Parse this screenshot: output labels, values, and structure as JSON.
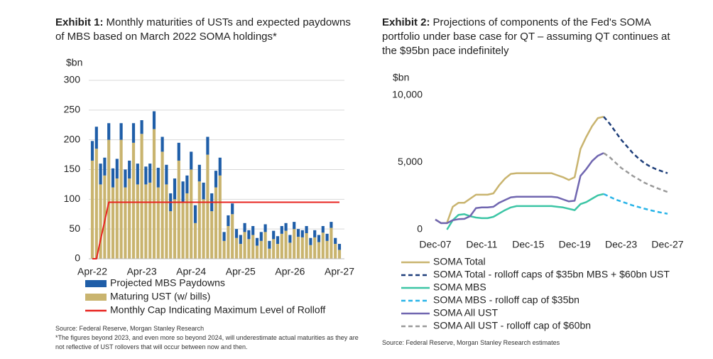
{
  "chart_data": [
    {
      "type": "bar",
      "stacked": true,
      "label": "Exhibit 1:",
      "title": "Monthly maturities of USTs and expected paydowns of MBS based on March 2022 SOMA holdings*",
      "ylabel": "$bn",
      "source": "Source: Federal Reserve, Morgan Stanley Research",
      "note": "*The figures beyond 2023, and even more so beyond 2024, will underestimate actual maturities as they are not reflective of UST rollovers that will occur between now and then.",
      "grid": true,
      "ylim": [
        0,
        300
      ],
      "yticks": [
        0,
        50,
        100,
        150,
        200,
        250,
        300
      ],
      "categories": [
        "Apr-22",
        null,
        null,
        null,
        null,
        null,
        null,
        null,
        null,
        null,
        null,
        null,
        "Apr-23",
        null,
        null,
        null,
        null,
        null,
        null,
        null,
        null,
        null,
        null,
        null,
        "Apr-24",
        null,
        null,
        null,
        null,
        null,
        null,
        null,
        null,
        null,
        null,
        null,
        "Apr-25",
        null,
        null,
        null,
        null,
        null,
        null,
        null,
        null,
        null,
        null,
        null,
        "Apr-26",
        null,
        null,
        null,
        null,
        null,
        null,
        null,
        null,
        null,
        null,
        null,
        "Apr-27"
      ],
      "series": [
        {
          "name": "Projected MBS Paydowns",
          "type": "bar",
          "color": "#1f5ea8",
          "values": [
            33,
            37,
            35,
            30,
            28,
            32,
            33,
            28,
            30,
            30,
            33,
            35,
            23,
            30,
            32,
            30,
            33,
            25,
            33,
            30,
            35,
            30,
            35,
            30,
            30,
            30,
            28,
            28,
            30,
            30,
            28,
            30,
            15,
            18,
            18,
            15,
            15,
            15,
            15,
            15,
            13,
            15,
            13,
            13,
            14,
            13,
            13,
            13,
            13,
            12,
            13,
            12,
            12,
            12,
            12,
            12,
            11,
            12,
            10,
            10,
            10
          ]
        },
        {
          "name": "Maturing UST (w/ bills)",
          "type": "bar",
          "color": "#c9b46f",
          "values": [
            165,
            185,
            125,
            140,
            200,
            120,
            135,
            200,
            120,
            135,
            195,
            125,
            210,
            125,
            128,
            218,
            120,
            180,
            125,
            80,
            100,
            165,
            95,
            110,
            150,
            60,
            130,
            100,
            175,
            80,
            120,
            140,
            30,
            55,
            75,
            35,
            25,
            45,
            33,
            40,
            22,
            30,
            45,
            17,
            33,
            25,
            42,
            47,
            27,
            50,
            37,
            36,
            43,
            23,
            36,
            28,
            44,
            30,
            52,
            25,
            15
          ]
        },
        {
          "name": "Monthly Cap Indicating Maximum Level of Rolloff",
          "type": "line",
          "color": "#e8231f",
          "values": [
            0,
            0,
            32,
            63,
            95,
            95,
            95,
            95,
            95,
            95,
            95,
            95,
            95,
            95,
            95,
            95,
            95,
            95,
            95,
            95,
            95,
            95,
            95,
            95,
            95,
            95,
            95,
            95,
            95,
            95,
            95,
            95,
            95,
            95,
            95,
            95,
            95,
            95,
            95,
            95,
            95,
            95,
            95,
            95,
            95,
            95,
            95,
            95,
            95,
            95,
            95,
            95,
            95,
            95,
            95,
            95,
            95,
            95,
            95,
            95,
            95
          ]
        }
      ]
    },
    {
      "type": "line",
      "label": "Exhibit 2:",
      "title": "Projections of components of the Fed's SOMA portfolio under base case for QT – assuming QT continues at the $95bn pace indefinitely",
      "ylabel": "$bn",
      "source": "Source: Federal Reserve, Morgan Stanley Research estimates",
      "grid": false,
      "ylim": [
        0,
        10000
      ],
      "yticks": [
        0,
        {
          "value": 5000,
          "label": "5,000"
        },
        {
          "value": 10000,
          "label": "10,000"
        }
      ],
      "categories": [
        "Dec-07",
        null,
        null,
        null,
        null,
        null,
        null,
        null,
        "Dec-11",
        null,
        null,
        null,
        null,
        null,
        null,
        null,
        "Dec-15",
        null,
        null,
        null,
        null,
        null,
        null,
        null,
        "Dec-19",
        null,
        null,
        null,
        null,
        null,
        null,
        null,
        "Dec-23",
        null,
        null,
        null,
        null,
        null,
        null,
        null,
        "Dec-27"
      ],
      "series": [
        {
          "name": "SOMA Total",
          "color": "#c9b46f",
          "dashed": false,
          "values": [
            750,
            480,
            500,
            1700,
            2000,
            2000,
            2300,
            2600,
            2600,
            2600,
            2700,
            3300,
            3800,
            4150,
            4200,
            4200,
            4200,
            4200,
            4200,
            4200,
            4200,
            4050,
            3900,
            3700,
            3900,
            6000,
            6900,
            7700,
            8300,
            8400,
            null,
            null,
            null,
            null,
            null,
            null,
            null,
            null,
            null,
            null,
            null
          ]
        },
        {
          "name": "SOMA Total - rolloff caps of $35bn MBS + $60bn UST",
          "color": "#1f3f7a",
          "dashed": true,
          "values": [
            null,
            null,
            null,
            null,
            null,
            null,
            null,
            null,
            null,
            null,
            null,
            null,
            null,
            null,
            null,
            null,
            null,
            null,
            null,
            null,
            null,
            null,
            null,
            null,
            null,
            null,
            null,
            null,
            null,
            8400,
            7900,
            7300,
            6700,
            6200,
            5700,
            5300,
            4950,
            4700,
            4500,
            4350,
            4200
          ]
        },
        {
          "name": "SOMA MBS",
          "color": "#3cc5a5",
          "dashed": false,
          "values": [
            null,
            null,
            0,
            700,
            1100,
            1150,
            1000,
            900,
            850,
            850,
            950,
            1200,
            1450,
            1650,
            1750,
            1750,
            1750,
            1750,
            1750,
            1750,
            1750,
            1700,
            1650,
            1550,
            1450,
            1900,
            2050,
            2300,
            2550,
            2650,
            null,
            null,
            null,
            null,
            null,
            null,
            null,
            null,
            null,
            null,
            null
          ]
        },
        {
          "name": "SOMA MBS - rolloff cap of $35bn",
          "color": "#29b4e8",
          "dashed": true,
          "values": [
            null,
            null,
            null,
            null,
            null,
            null,
            null,
            null,
            null,
            null,
            null,
            null,
            null,
            null,
            null,
            null,
            null,
            null,
            null,
            null,
            null,
            null,
            null,
            null,
            null,
            null,
            null,
            null,
            null,
            2650,
            2450,
            2250,
            2100,
            1950,
            1800,
            1680,
            1560,
            1450,
            1350,
            1260,
            1180
          ]
        },
        {
          "name": "SOMA All UST",
          "color": "#7066b0",
          "dashed": false,
          "values": [
            750,
            480,
            480,
            700,
            780,
            800,
            1000,
            1600,
            1650,
            1650,
            1700,
            2000,
            2200,
            2400,
            2450,
            2450,
            2450,
            2450,
            2450,
            2450,
            2450,
            2400,
            2250,
            2100,
            2150,
            4000,
            4500,
            5100,
            5500,
            5700,
            null,
            null,
            null,
            null,
            null,
            null,
            null,
            null,
            null,
            null,
            null
          ]
        },
        {
          "name": "SOMA All UST - rolloff cap of $60bn",
          "color": "#9a9a9a",
          "dashed": true,
          "values": [
            null,
            null,
            null,
            null,
            null,
            null,
            null,
            null,
            null,
            null,
            null,
            null,
            null,
            null,
            null,
            null,
            null,
            null,
            null,
            null,
            null,
            null,
            null,
            null,
            null,
            null,
            null,
            null,
            null,
            5700,
            5400,
            5000,
            4600,
            4300,
            4000,
            3750,
            3500,
            3300,
            3120,
            2960,
            2800
          ]
        }
      ]
    }
  ]
}
